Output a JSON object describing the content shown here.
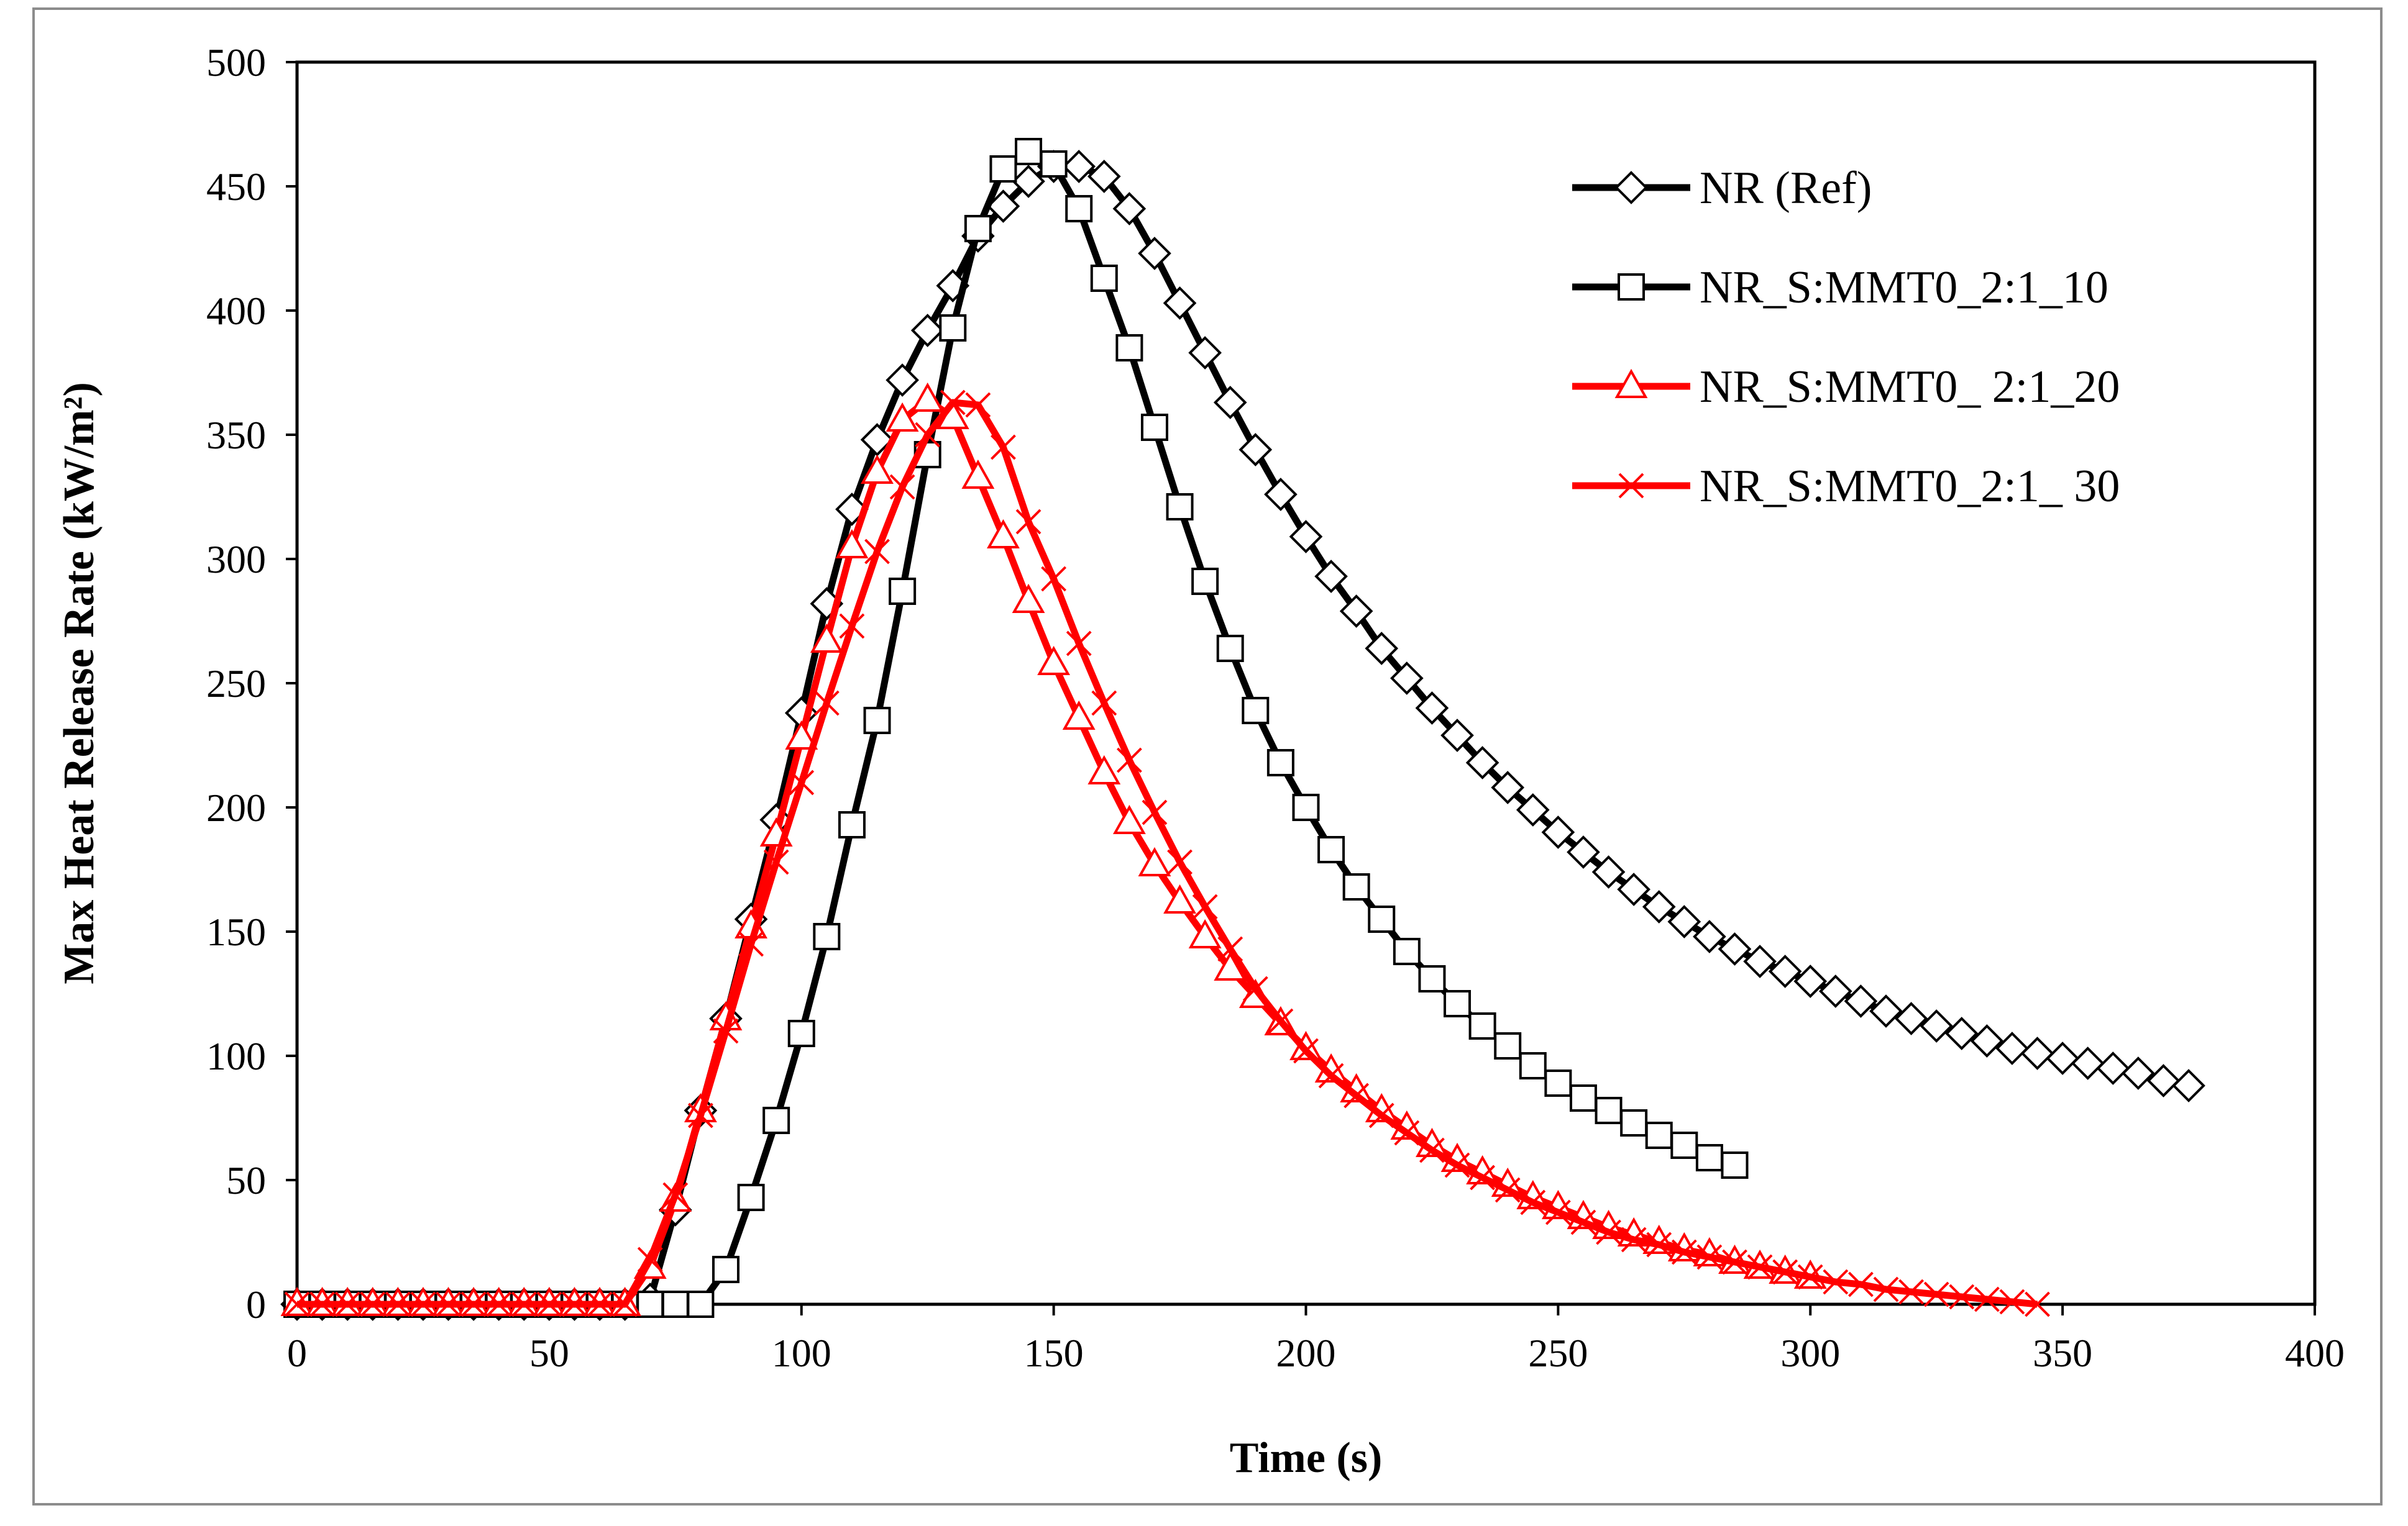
{
  "chart_data": {
    "type": "line",
    "title": "",
    "xlabel": "Time (s)",
    "ylabel": "Max Heat Release Rate (kW/m²)",
    "xlim": [
      0,
      400
    ],
    "ylim": [
      0,
      500
    ],
    "xticks": [
      "0",
      "50",
      "100",
      "150",
      "200",
      "250",
      "300",
      "350",
      "400"
    ],
    "yticks": [
      "0",
      "50",
      "100",
      "150",
      "200",
      "250",
      "300",
      "350",
      "400",
      "450",
      "500"
    ],
    "grid": false,
    "legend_position": "top-right",
    "series": [
      {
        "name": "NR (Ref)",
        "color": "#000000",
        "marker": "diamond",
        "x": [
          0,
          5,
          10,
          15,
          20,
          25,
          30,
          35,
          40,
          45,
          50,
          55,
          60,
          65,
          70,
          75,
          80,
          85,
          90,
          95,
          100,
          105,
          110,
          115,
          120,
          125,
          130,
          135,
          140,
          145,
          150,
          155,
          160,
          165,
          170,
          175,
          180,
          185,
          190,
          195,
          200,
          205,
          210,
          215,
          220,
          225,
          230,
          235,
          240,
          245,
          250,
          255,
          260,
          265,
          270,
          275,
          280,
          285,
          290,
          295,
          300,
          305,
          310,
          315,
          320,
          325,
          330,
          335,
          340,
          345,
          350,
          355,
          360,
          365,
          370,
          375
        ],
        "y": [
          0,
          0,
          0,
          0,
          0,
          0,
          0,
          0,
          0,
          0,
          0,
          0,
          0,
          0,
          2,
          38,
          78,
          115,
          155,
          195,
          238,
          282,
          320,
          348,
          372,
          392,
          410,
          430,
          442,
          452,
          458,
          458,
          454,
          441,
          423,
          403,
          383,
          363,
          344,
          326,
          309,
          293,
          279,
          264,
          252,
          240,
          229,
          218,
          208,
          199,
          190,
          182,
          174,
          167,
          160,
          154,
          148,
          143,
          138,
          134,
          130,
          126,
          122,
          118,
          115,
          112,
          109,
          106,
          103,
          101,
          99,
          97,
          95,
          93,
          90,
          88
        ]
      },
      {
        "name": "NR_S:MMT0_2:1_10",
        "color": "#000000",
        "marker": "square",
        "x": [
          0,
          5,
          10,
          15,
          20,
          25,
          30,
          35,
          40,
          45,
          50,
          55,
          60,
          65,
          70,
          75,
          80,
          85,
          90,
          95,
          100,
          105,
          110,
          115,
          120,
          125,
          130,
          135,
          140,
          145,
          150,
          155,
          160,
          165,
          170,
          175,
          180,
          185,
          190,
          195,
          200,
          205,
          210,
          215,
          220,
          225,
          230,
          235,
          240,
          245,
          250,
          255,
          260,
          265,
          270,
          275,
          280,
          285
        ],
        "y": [
          0,
          0,
          0,
          0,
          0,
          0,
          0,
          0,
          0,
          0,
          0,
          0,
          0,
          0,
          0,
          0,
          0,
          14,
          43,
          74,
          109,
          148,
          193,
          235,
          287,
          342,
          393,
          433,
          457,
          464,
          459,
          441,
          413,
          385,
          353,
          321,
          291,
          264,
          239,
          218,
          200,
          183,
          168,
          155,
          142,
          131,
          121,
          112,
          104,
          96,
          89,
          83,
          78,
          73,
          68,
          64,
          59,
          56
        ]
      },
      {
        "name": "NR_S:MMT0_ 2:1_20",
        "color": "#ff0000",
        "marker": "triangle",
        "x": [
          0,
          5,
          10,
          15,
          20,
          25,
          30,
          35,
          40,
          45,
          50,
          55,
          60,
          65,
          70,
          75,
          80,
          85,
          90,
          95,
          100,
          105,
          110,
          115,
          120,
          125,
          130,
          135,
          140,
          145,
          150,
          155,
          160,
          165,
          170,
          175,
          180,
          185,
          190,
          195,
          200,
          205,
          210,
          215,
          220,
          225,
          230,
          235,
          240,
          245,
          250,
          255,
          260,
          265,
          270,
          275,
          280,
          285,
          290,
          295,
          300
        ],
        "y": [
          0,
          0,
          0,
          0,
          0,
          0,
          0,
          0,
          0,
          0,
          0,
          0,
          0,
          0,
          15,
          42,
          78,
          115,
          152,
          189,
          228,
          267,
          305,
          335,
          356,
          364,
          357,
          333,
          309,
          283,
          258,
          236,
          214,
          194,
          177,
          162,
          148,
          135,
          124,
          113,
          103,
          94,
          86,
          78,
          71,
          64,
          58,
          53,
          48,
          43,
          39,
          35,
          31,
          28,
          25,
          22,
          20,
          17,
          15,
          13,
          11
        ]
      },
      {
        "name": "NR_S:MMT0_2:1_ 30",
        "color": "#ff0000",
        "marker": "cross",
        "x": [
          0,
          5,
          10,
          15,
          20,
          25,
          30,
          35,
          40,
          45,
          50,
          55,
          60,
          65,
          70,
          75,
          80,
          85,
          90,
          95,
          100,
          105,
          110,
          115,
          120,
          125,
          130,
          135,
          140,
          145,
          150,
          155,
          160,
          165,
          170,
          175,
          180,
          185,
          190,
          195,
          200,
          205,
          210,
          215,
          220,
          225,
          230,
          235,
          240,
          245,
          250,
          255,
          260,
          265,
          270,
          275,
          280,
          285,
          290,
          295,
          300,
          305,
          310,
          315,
          320,
          325,
          330,
          335,
          340,
          345
        ],
        "y": [
          0,
          0,
          0,
          0,
          0,
          0,
          0,
          0,
          0,
          0,
          0,
          0,
          0,
          0,
          18,
          44,
          76,
          110,
          145,
          178,
          210,
          242,
          273,
          303,
          329,
          350,
          363,
          362,
          345,
          315,
          292,
          266,
          242,
          219,
          198,
          178,
          160,
          143,
          127,
          114,
          102,
          92,
          84,
          76,
          69,
          62,
          56,
          51,
          46,
          41,
          37,
          33,
          29,
          26,
          24,
          21,
          19,
          17,
          15,
          13,
          11,
          9,
          8,
          6,
          5,
          4,
          3,
          2,
          1,
          0
        ]
      }
    ]
  }
}
